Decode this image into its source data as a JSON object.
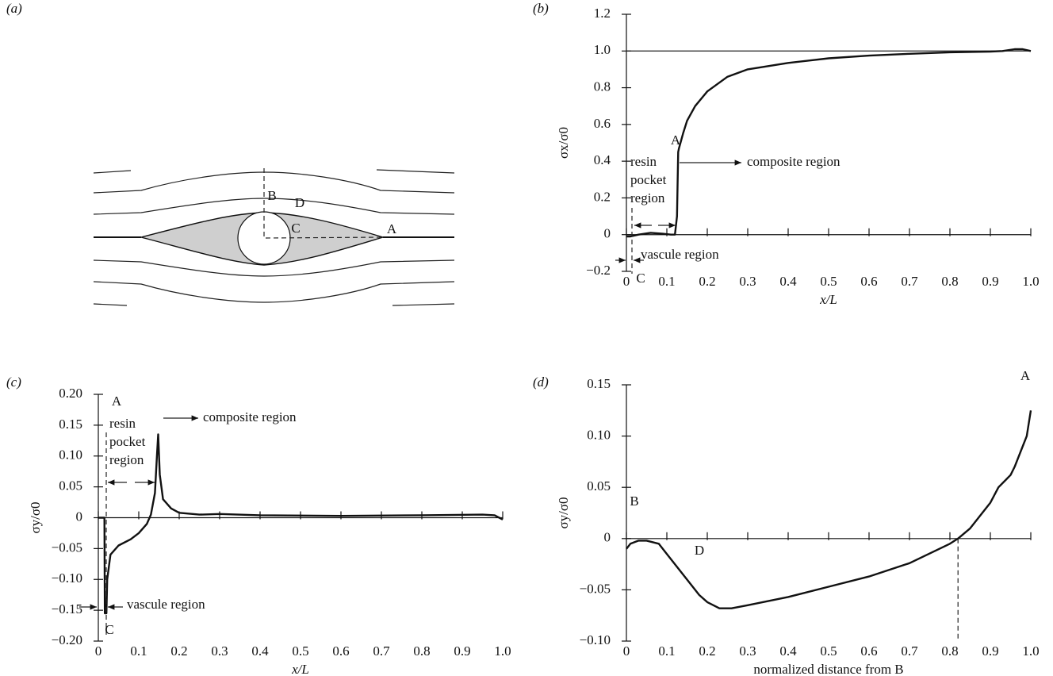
{
  "chart_data": [
    {
      "type": "diagram",
      "panel": "(a)",
      "labels": [
        "A",
        "B",
        "C",
        "D"
      ]
    },
    {
      "type": "line",
      "panel": "(b)",
      "ylabel": "σx/σ0",
      "xlabel": "x/L",
      "color": "#111111",
      "x": [
        0,
        0.01,
        0.03,
        0.06,
        0.09,
        0.11,
        0.12,
        0.125,
        0.128,
        0.13,
        0.14,
        0.15,
        0.17,
        0.2,
        0.25,
        0.3,
        0.4,
        0.5,
        0.6,
        0.7,
        0.8,
        0.9,
        0.93,
        0.96,
        0.98,
        1.0
      ],
      "values": [
        -0.01,
        -0.01,
        0.0,
        0.01,
        0.005,
        0.0,
        0.0,
        0.1,
        0.45,
        0.47,
        0.55,
        0.62,
        0.7,
        0.78,
        0.86,
        0.9,
        0.935,
        0.96,
        0.975,
        0.985,
        0.993,
        0.997,
        1.0,
        1.01,
        1.01,
        1.0
      ],
      "hline": 1.0,
      "xlim": [
        0,
        1
      ],
      "ylim": [
        -0.2,
        1.2
      ],
      "xticks": [
        0,
        0.1,
        0.2,
        0.3,
        0.4,
        0.5,
        0.6,
        0.7,
        0.8,
        0.9,
        {
          "value": 1,
          "label": "1.0"
        }
      ],
      "yticks": [
        {
          "value": -0.2,
          "label": "−0.2"
        },
        0,
        0.2,
        0.4,
        0.6,
        0.8,
        {
          "value": 1,
          "label": "1.0"
        },
        1.2
      ],
      "annotations": [
        "A",
        "C",
        "resin",
        "pocket",
        "region",
        "composite region",
        "vascule region"
      ]
    },
    {
      "type": "line",
      "panel": "(c)",
      "ylabel": "σy/σ0",
      "xlabel": "x/L",
      "color": "#111111",
      "x": [
        0,
        0.015,
        0.016,
        0.02,
        0.022,
        0.03,
        0.05,
        0.08,
        0.1,
        0.12,
        0.13,
        0.14,
        0.145,
        0.148,
        0.152,
        0.16,
        0.18,
        0.2,
        0.25,
        0.3,
        0.4,
        0.6,
        0.8,
        0.95,
        0.98,
        1.0
      ],
      "values": [
        0,
        0,
        -0.155,
        -0.155,
        -0.1,
        -0.06,
        -0.045,
        -0.035,
        -0.025,
        -0.01,
        0.005,
        0.04,
        0.1,
        0.135,
        0.07,
        0.03,
        0.015,
        0.008,
        0.005,
        0.006,
        0.004,
        0.003,
        0.004,
        0.005,
        0.004,
        -0.003
      ],
      "xlim": [
        0,
        1
      ],
      "ylim": [
        -0.2,
        0.2
      ],
      "xticks": [
        0,
        0.1,
        0.2,
        0.3,
        0.4,
        0.5,
        0.6,
        0.7,
        0.8,
        0.9,
        {
          "value": 1,
          "label": "1.0"
        }
      ],
      "yticks": [
        {
          "value": -0.2,
          "label": "−0.20"
        },
        {
          "value": -0.15,
          "label": "−0.15"
        },
        {
          "value": -0.1,
          "label": "−0.10"
        },
        {
          "value": -0.05,
          "label": "−0.05"
        },
        0,
        0.05,
        {
          "value": 0.1,
          "label": "0.10"
        },
        0.15,
        {
          "value": 0.2,
          "label": "0.20"
        }
      ],
      "annotations": [
        "A",
        "C",
        "resin",
        "pocket",
        "region",
        "composite region",
        "vascule region"
      ]
    },
    {
      "type": "line",
      "panel": "(d)",
      "ylabel": "σy/σ0",
      "xlabel": "normalized distance from B",
      "color": "#111111",
      "x": [
        0,
        0.01,
        0.03,
        0.05,
        0.08,
        0.1,
        0.15,
        0.18,
        0.2,
        0.23,
        0.26,
        0.3,
        0.4,
        0.5,
        0.6,
        0.7,
        0.8,
        0.82,
        0.85,
        0.88,
        0.9,
        0.92,
        0.95,
        0.96,
        0.98,
        0.99,
        1.0
      ],
      "values": [
        -0.01,
        -0.005,
        -0.002,
        -0.002,
        -0.005,
        -0.015,
        -0.04,
        -0.055,
        -0.062,
        -0.068,
        -0.068,
        -0.065,
        -0.057,
        -0.047,
        -0.037,
        -0.024,
        -0.005,
        0,
        0.01,
        0.025,
        0.035,
        0.05,
        0.062,
        0.07,
        0.09,
        0.1,
        0.125
      ],
      "vline": 0.82,
      "xlim": [
        0,
        1
      ],
      "ylim": [
        -0.1,
        0.15
      ],
      "xticks": [
        0,
        0.1,
        0.2,
        0.3,
        0.4,
        0.5,
        0.6,
        0.7,
        0.8,
        0.9,
        {
          "value": 1,
          "label": "1.0"
        }
      ],
      "yticks": [
        {
          "value": -0.1,
          "label": "−0.10"
        },
        {
          "value": -0.05,
          "label": "−0.05"
        },
        0,
        0.05,
        {
          "value": 0.1,
          "label": "0.10"
        },
        0.15
      ],
      "annotations": [
        "A",
        "B",
        "D"
      ]
    }
  ]
}
